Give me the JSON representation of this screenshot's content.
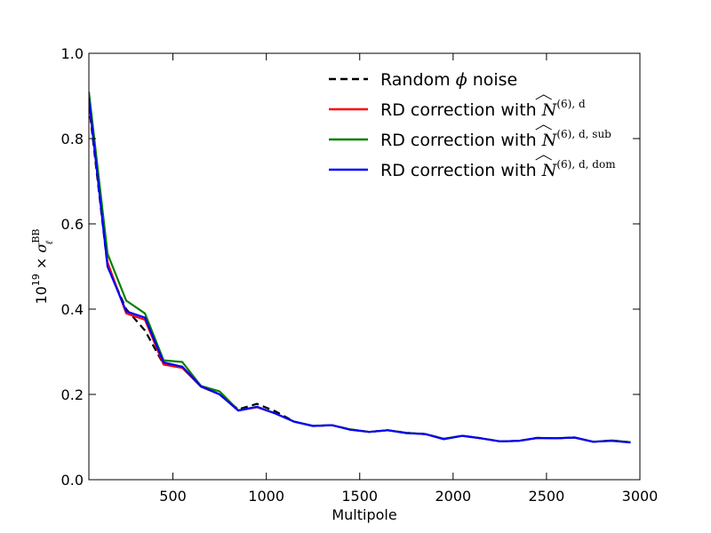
{
  "chart_data": {
    "type": "line",
    "xlabel": "Multipole",
    "ylabel_parts": {
      "base": "10",
      "exp": "19",
      "times": "×",
      "sym": "σ",
      "sup": "BB",
      "sub": "ℓ"
    },
    "xlim": [
      50,
      3000
    ],
    "ylim": [
      0.0,
      1.0
    ],
    "xticks": [
      500,
      1000,
      1500,
      2000,
      2500,
      3000
    ],
    "xtick_labels": [
      "500",
      "1000",
      "1500",
      "2000",
      "2500",
      "3000"
    ],
    "yticks": [
      0.0,
      0.2,
      0.4,
      0.6,
      0.8,
      1.0
    ],
    "ytick_labels": [
      "0.0",
      "0.2",
      "0.4",
      "0.6",
      "0.8",
      "1.0"
    ],
    "legend_location": "upper-right",
    "x": [
      50,
      150,
      250,
      350,
      450,
      550,
      650,
      750,
      850,
      950,
      1050,
      1150,
      1250,
      1350,
      1450,
      1550,
      1650,
      1750,
      1850,
      1950,
      2050,
      2150,
      2250,
      2350,
      2450,
      2550,
      2650,
      2750,
      2850,
      2950
    ],
    "series": [
      {
        "legend": {
          "prefix": "Random ",
          "sym": "ϕ",
          "suffix": " noise",
          "sup": ""
        },
        "color": "#000000",
        "dash": "8,5",
        "values": [
          0.88,
          0.5,
          0.4,
          0.35,
          0.27,
          0.265,
          0.22,
          0.2,
          0.165,
          0.178,
          0.16,
          0.136,
          0.126,
          0.128,
          0.118,
          0.112,
          0.116,
          0.11,
          0.107,
          0.096,
          0.103,
          0.097,
          0.09,
          0.091,
          0.098,
          0.097,
          0.099,
          0.089,
          0.092,
          0.088
        ]
      },
      {
        "legend": {
          "prefix": "RD correction with ",
          "sym": "N",
          "suffix": "",
          "sup": "(6), d"
        },
        "color": "#ff0000",
        "dash": "",
        "values": [
          0.89,
          0.51,
          0.39,
          0.375,
          0.27,
          0.262,
          0.218,
          0.2,
          0.162,
          0.17,
          0.155,
          0.136,
          0.126,
          0.128,
          0.118,
          0.112,
          0.116,
          0.11,
          0.107,
          0.096,
          0.103,
          0.097,
          0.09,
          0.091,
          0.098,
          0.097,
          0.099,
          0.089,
          0.092,
          0.088
        ]
      },
      {
        "legend": {
          "prefix": "RD correction with ",
          "sym": "N",
          "suffix": "",
          "sup": "(6), d, sub"
        },
        "color": "#008000",
        "dash": "",
        "values": [
          0.91,
          0.53,
          0.42,
          0.39,
          0.28,
          0.276,
          0.22,
          0.207,
          0.163,
          0.171,
          0.155,
          0.136,
          0.126,
          0.128,
          0.118,
          0.112,
          0.116,
          0.11,
          0.107,
          0.096,
          0.103,
          0.097,
          0.09,
          0.091,
          0.098,
          0.097,
          0.099,
          0.089,
          0.092,
          0.088
        ]
      },
      {
        "legend": {
          "prefix": "RD correction with ",
          "sym": "N",
          "suffix": "",
          "sup": "(6), d, dom"
        },
        "color": "#0000ff",
        "dash": "",
        "values": [
          0.895,
          0.5,
          0.395,
          0.38,
          0.275,
          0.265,
          0.219,
          0.2,
          0.162,
          0.171,
          0.155,
          0.136,
          0.126,
          0.128,
          0.117,
          0.112,
          0.116,
          0.109,
          0.107,
          0.095,
          0.103,
          0.097,
          0.09,
          0.091,
          0.098,
          0.097,
          0.099,
          0.089,
          0.091,
          0.087
        ]
      }
    ]
  }
}
